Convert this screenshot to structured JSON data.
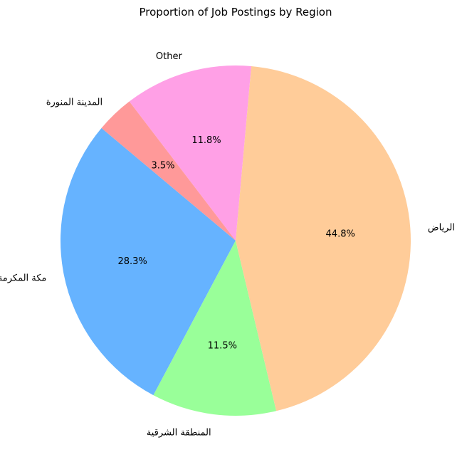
{
  "chart_data": {
    "type": "pie",
    "title": "Proportion of Job Postings by Region",
    "start_angle_deg": 140,
    "direction": "counterclockwise",
    "slices": [
      {
        "label": "مكة المكرمة",
        "value": 28.3,
        "display": "28.3%",
        "color": "#66b3ff"
      },
      {
        "label": "المنطقة الشرقية",
        "value": 11.5,
        "display": "11.5%",
        "color": "#99ff99"
      },
      {
        "label": "الرياض",
        "value": 44.8,
        "display": "44.8%",
        "color": "#ffcc99"
      },
      {
        "label": "Other",
        "value": 11.8,
        "display": "11.8%",
        "color": "#ffa0e6"
      },
      {
        "label": "المدينة المنورة",
        "value": 3.5,
        "display": "3.5%",
        "color": "#ff9999"
      }
    ]
  }
}
